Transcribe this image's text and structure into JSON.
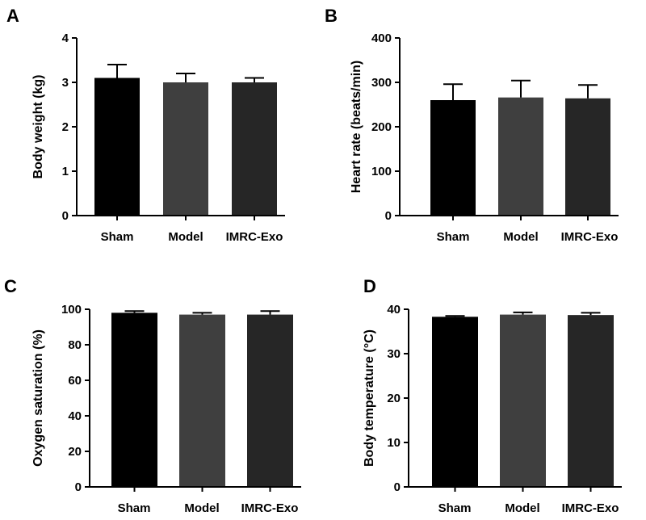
{
  "chart_data": [
    {
      "type": "bar",
      "panel": "A",
      "ylabel": "Body weight (kg)",
      "categories": [
        "Sham",
        "Model",
        "IMRC-Exo"
      ],
      "values": [
        3.1,
        3.0,
        3.0
      ],
      "errors": [
        0.3,
        0.2,
        0.1
      ],
      "ylim": [
        0,
        4
      ],
      "yticks": [
        0,
        1,
        2,
        3,
        4
      ],
      "bar_colors": [
        "#000000",
        "#3f3f3f",
        "#262626"
      ]
    },
    {
      "type": "bar",
      "panel": "B",
      "ylabel": "Heart rate (beats/min)",
      "categories": [
        "Sham",
        "Model",
        "IMRC-Exo"
      ],
      "values": [
        260,
        266,
        264
      ],
      "errors": [
        36,
        38,
        30
      ],
      "ylim": [
        0,
        400
      ],
      "yticks": [
        0,
        100,
        200,
        300,
        400
      ],
      "bar_colors": [
        "#000000",
        "#3f3f3f",
        "#262626"
      ]
    },
    {
      "type": "bar",
      "panel": "C",
      "ylabel": "Oxygen saturation (%)",
      "categories": [
        "Sham",
        "Model",
        "IMRC-Exo"
      ],
      "values": [
        98,
        97,
        97
      ],
      "errors": [
        1,
        1,
        2
      ],
      "ylim": [
        0,
        100
      ],
      "yticks": [
        0,
        20,
        40,
        60,
        80,
        100
      ],
      "bar_colors": [
        "#000000",
        "#3f3f3f",
        "#262626"
      ]
    },
    {
      "type": "bar",
      "panel": "D",
      "ylabel": "Body temperature (°C)",
      "categories": [
        "Sham",
        "Model",
        "IMRC-Exo"
      ],
      "values": [
        38.3,
        38.8,
        38.7
      ],
      "errors": [
        0.2,
        0.5,
        0.5
      ],
      "ylim": [
        0,
        40
      ],
      "yticks": [
        0,
        10,
        20,
        30,
        40
      ],
      "bar_colors": [
        "#000000",
        "#3f3f3f",
        "#262626"
      ]
    }
  ]
}
